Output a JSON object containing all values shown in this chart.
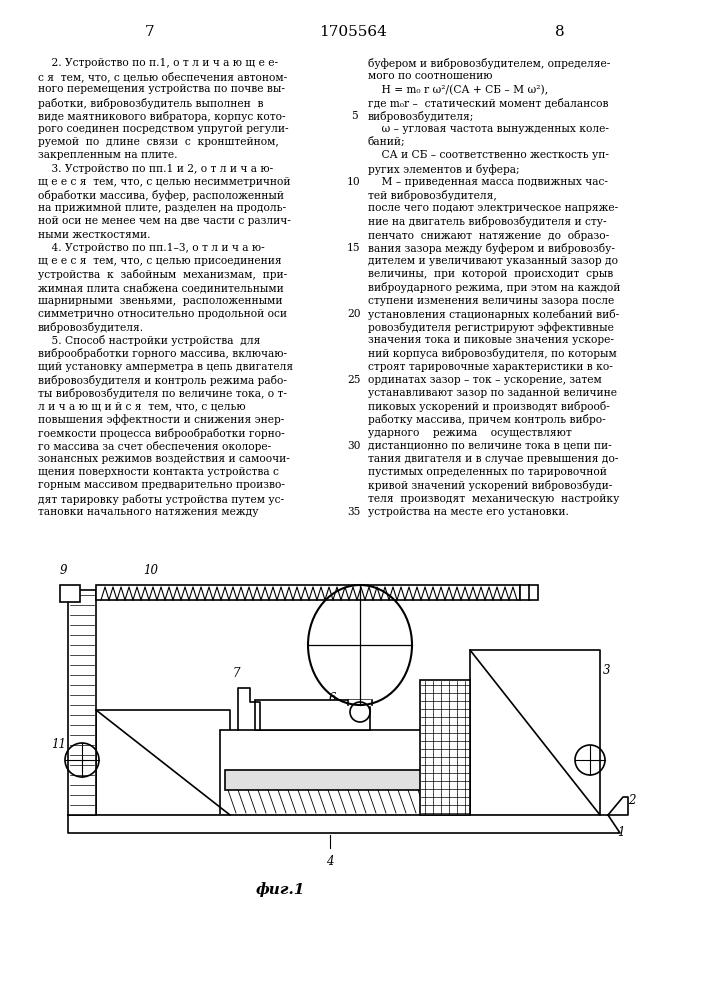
{
  "page_number_left": "7",
  "patent_number": "1705564",
  "page_number_right": "8",
  "background_color": "#ffffff",
  "text_color": "#000000",
  "fig_caption": "фиг.1",
  "left_col_lines": [
    "    2. Устройство по п.1, о т л и ч а ю щ е е-",
    "с я  тем, что, с целью обеспечения автоном-",
    "ного перемещения устройства по почве вы-",
    "работки, вибровозбудитель выполнен  в",
    "виде маятникового вибратора, корпус кото-",
    "рого соединен посредством упругой регули-",
    "руемой  по  длине  связи  с  кронштейном,",
    "закрепленным на плите.",
    "    3. Устройство по пп.1 и 2, о т л и ч а ю-",
    "щ е е с я  тем, что, с целью несимметричной",
    "обработки массива, буфер, расположенный",
    "на прижимной плите, разделен на продоль-",
    "ной оси не менее чем на две части с различ-",
    "ными жесткостями.",
    "    4. Устройство по пп.1–3, о т л и ч а ю-",
    "щ е е с я  тем, что, с целью присоединения",
    "устройства  к  забойным  механизмам,  при-",
    "жимная плита снабжена соединительными",
    "шарнирными  звеньями,  расположенными",
    "симметрично относительно продольной оси",
    "вибровозбудителя.",
    "    5. Способ настройки устройства  для",
    "виброобработки горного массива, включаю-",
    "щий установку амперметра в цепь двигателя",
    "вибровозбудителя и контроль режима рабо-",
    "ты вибровозбудителя по величине тока, о т-",
    "л и ч а ю щ и й с я  тем, что, с целью",
    "повышения эффектности и снижения энер-",
    "гоемкости процесса виброобработки горно-",
    "го массива за счет обеспечения околоре-",
    "зонансных режимов воздействия и самоочи-",
    "щения поверхности контакта устройства с",
    "горным массивом предварительно произво-",
    "дят тарировку работы устройства путем ус-",
    "тановки начального натяжения между"
  ],
  "right_col_lines": [
    "буфером и вибровозбудителем, определяе-",
    "мого по соотношению",
    "    Н = m₀ r ω²/(СА + СБ – М ω²),",
    "где m₀r –  статический момент дебалансов",
    "вибровозбудителя;",
    "    ω – угловая частота вынужденных коле-",
    "баний;",
    "    СА и СБ – соответственно жесткость уп-",
    "ругих элементов и буфера;",
    "    М – приведенная масса подвижных час-",
    "тей вибровозбудителя,",
    "после чего подают электрическое напряже-",
    "ние на двигатель вибровозбудителя и сту-",
    "пенчато  снижают  натяжение  до  образо-",
    "вания зазора между буфером и вибровозбу-",
    "дителем и увеличивают указанный зазор до",
    "величины,  при  которой  происходит  срыв",
    "виброударного режима, при этом на каждой",
    "ступени изменения величины зазора после",
    "установления стационарных колебаний виб-",
    "ровозбудителя регистрируют эффективные",
    "значения тока и пиковые значения ускоре-",
    "ний корпуса вибровозбудителя, по которым",
    "строят тарировочные характеристики в ко-",
    "ординатах зазор – ток – ускорение, затем",
    "устанавливают зазор по заданной величине",
    "пиковых ускорений и производят виброоб-",
    "работку массива, причем контроль вибро-",
    "ударного    режима    осуществляют",
    "дистанционно по величине тока в цепи пи-",
    "тания двигателя и в случае превышения до-",
    "пустимых определенных по тарировочной",
    "кривой значений ускорений вибровозбуди-",
    "теля  производят  механическую  настройку",
    "устройства на месте его установки."
  ],
  "line_numbers": [
    [
      4,
      "5"
    ],
    [
      9,
      "10"
    ],
    [
      14,
      "15"
    ],
    [
      19,
      "20"
    ],
    [
      24,
      "25"
    ],
    [
      29,
      "30"
    ],
    [
      34,
      "35"
    ]
  ]
}
